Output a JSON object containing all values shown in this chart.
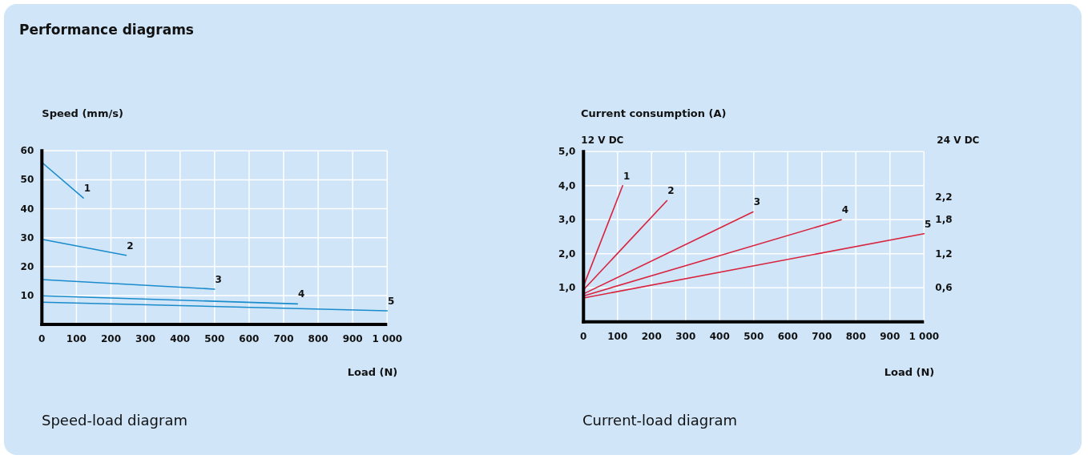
{
  "chart_data": [
    {
      "type": "line",
      "title": "Performance diagrams",
      "ylabel": "Speed (mm/s)",
      "xlabel": "Load (N)",
      "annotations": [
        "Speed-load diagram"
      ],
      "xlim": [
        0,
        1000
      ],
      "xticks": [
        0,
        100,
        200,
        300,
        400,
        500,
        600,
        700,
        800,
        900,
        {
          "value": 1000,
          "label": "1 000"
        }
      ],
      "ylim": [
        0,
        60
      ],
      "yticks": [
        10,
        20,
        30,
        40,
        50,
        60
      ],
      "grid": true,
      "marker": "none",
      "line_style": "solid",
      "series": [
        {
          "name": "1",
          "color": "#1a8ccc",
          "x": [
            0,
            120
          ],
          "values": [
            56,
            43.7
          ]
        },
        {
          "name": "2",
          "color": "#1a8ccc",
          "x": [
            0,
            244
          ],
          "values": [
            29.4,
            23.9
          ]
        },
        {
          "name": "3",
          "color": "#1a8ccc",
          "x": [
            0,
            500
          ],
          "values": [
            15.5,
            12.2
          ]
        },
        {
          "name": "4",
          "color": "#1a8ccc",
          "x": [
            0,
            740
          ],
          "values": [
            9.9,
            7.1
          ]
        },
        {
          "name": "5",
          "color": "#1a8ccc",
          "x": [
            0,
            1000
          ],
          "values": [
            7.7,
            4.7
          ]
        }
      ]
    },
    {
      "type": "line",
      "title": "Current consumption (A)",
      "ylabel": "12 V DC",
      "y2label": "24 V DC",
      "xlabel": "Load (N)",
      "annotations": [
        "Current-load diagram"
      ],
      "xlim": [
        0,
        1000
      ],
      "xticks": [
        0,
        100,
        200,
        300,
        400,
        500,
        600,
        700,
        800,
        900,
        {
          "value": 1000,
          "label": "1 000"
        }
      ],
      "ylim": [
        0,
        5
      ],
      "yticks": [
        {
          "value": 1,
          "label": "1,0"
        },
        {
          "value": 2,
          "label": "2,0"
        },
        {
          "value": 3,
          "label": "3,0"
        },
        {
          "value": 4,
          "label": "4,0"
        },
        {
          "value": 5,
          "label": "5,0"
        }
      ],
      "y2lim": [
        0,
        3
      ],
      "y2ticks": [
        {
          "value": 0.6,
          "label": "0,6"
        },
        {
          "value": 1.2,
          "label": "1,2"
        },
        {
          "value": 1.8,
          "label": "1,8"
        },
        {
          "value": 2.2,
          "label": "2,2"
        }
      ],
      "grid": true,
      "marker": "none",
      "line_style": "solid",
      "series": [
        {
          "name": "1",
          "color": "#d9243f",
          "x": [
            0,
            115
          ],
          "values": [
            1.05,
            4.0
          ]
        },
        {
          "name": "2",
          "color": "#d9243f",
          "x": [
            0,
            245
          ],
          "values": [
            0.94,
            3.56
          ]
        },
        {
          "name": "3",
          "color": "#d9243f",
          "x": [
            0,
            498
          ],
          "values": [
            0.82,
            3.23
          ]
        },
        {
          "name": "4",
          "color": "#d9243f",
          "x": [
            0,
            757
          ],
          "values": [
            0.76,
            3.0
          ]
        },
        {
          "name": "5",
          "color": "#d9243f",
          "x": [
            0,
            1000
          ],
          "values": [
            0.7,
            2.59
          ]
        }
      ]
    }
  ]
}
